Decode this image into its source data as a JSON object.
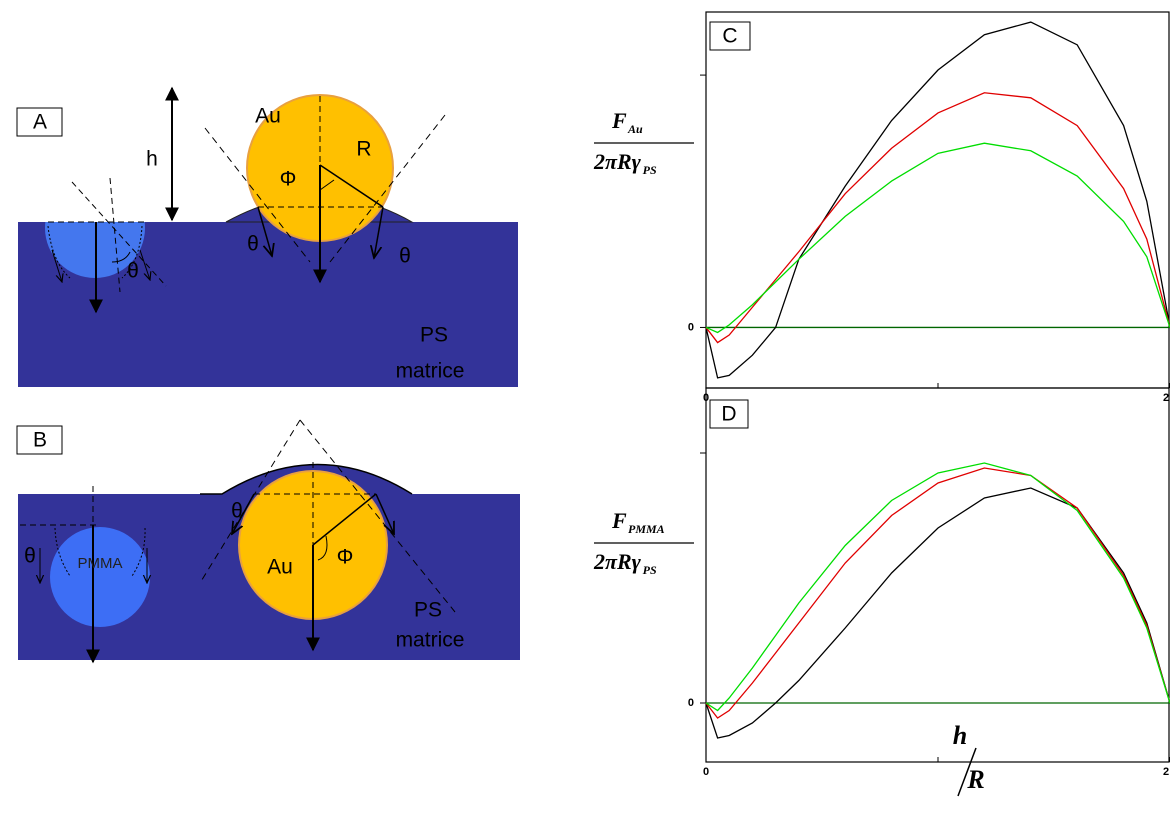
{
  "diagram": {
    "panels": [
      {
        "label": "A",
        "texts": [
          "h",
          "Au",
          "R",
          "Φ",
          "θ",
          "θ",
          "θ",
          "PS",
          "matrice"
        ]
      },
      {
        "label": "B",
        "texts": [
          "θ",
          "PMMA",
          "θ",
          "Au",
          "Φ",
          "PS",
          "matrice"
        ]
      }
    ]
  },
  "chart_data": [
    {
      "type": "line",
      "panel": "C",
      "y_label": {
        "numerator": "F",
        "numerator_sub": "Au",
        "denominator": "2πRγ",
        "denominator_sub": "PS"
      },
      "x": [
        0,
        0.05,
        0.1,
        0.2,
        0.3,
        0.4,
        0.6,
        0.8,
        1.0,
        1.2,
        1.4,
        1.6,
        1.8,
        1.9,
        2.0
      ],
      "series": [
        {
          "color": "#000000",
          "values": [
            0,
            -0.2,
            -0.19,
            -0.11,
            0.0,
            0.27,
            0.56,
            0.82,
            1.02,
            1.16,
            1.21,
            1.12,
            0.8,
            0.5,
            0
          ]
        },
        {
          "color": "#e00000",
          "values": [
            0,
            -0.06,
            -0.03,
            0.08,
            0.19,
            0.3,
            0.53,
            0.71,
            0.85,
            0.93,
            0.91,
            0.8,
            0.55,
            0.35,
            0
          ]
        },
        {
          "color": "#00dd00",
          "values": [
            0,
            -0.02,
            0.01,
            0.09,
            0.18,
            0.27,
            0.44,
            0.58,
            0.69,
            0.73,
            0.7,
            0.6,
            0.42,
            0.28,
            0
          ]
        }
      ],
      "xlim": [
        0,
        2
      ],
      "ylim": [
        -0.24,
        1.25
      ],
      "xticks": [
        0,
        2
      ],
      "yticks": [
        0
      ],
      "unlabeled_xticks": [
        1
      ],
      "unlabeled_yticks": [
        1
      ],
      "zero_line_color": "#006600"
    },
    {
      "type": "line",
      "panel": "D",
      "y_label": {
        "numerator": "F",
        "numerator_sub": "PMMA",
        "denominator": "2πRγ",
        "denominator_sub": "PS"
      },
      "x_label": {
        "numerator": "h",
        "denominator": "R"
      },
      "x": [
        0,
        0.05,
        0.1,
        0.2,
        0.3,
        0.4,
        0.6,
        0.8,
        1.0,
        1.2,
        1.4,
        1.6,
        1.8,
        1.9,
        2.0
      ],
      "series": [
        {
          "color": "#000000",
          "values": [
            0,
            -0.14,
            -0.13,
            -0.08,
            0.0,
            0.09,
            0.3,
            0.52,
            0.7,
            0.82,
            0.86,
            0.78,
            0.52,
            0.32,
            0
          ]
        },
        {
          "color": "#e00000",
          "values": [
            0,
            -0.06,
            -0.03,
            0.08,
            0.2,
            0.32,
            0.56,
            0.75,
            0.88,
            0.94,
            0.91,
            0.78,
            0.51,
            0.31,
            0
          ]
        },
        {
          "color": "#00dd00",
          "values": [
            0,
            -0.03,
            0.02,
            0.14,
            0.27,
            0.4,
            0.63,
            0.81,
            0.92,
            0.96,
            0.91,
            0.77,
            0.5,
            0.3,
            0
          ]
        }
      ],
      "xlim": [
        0,
        2
      ],
      "ylim": [
        -0.236,
        1.26
      ],
      "xticks": [
        0,
        2
      ],
      "yticks": [
        0
      ],
      "unlabeled_xticks": [
        1
      ],
      "unlabeled_yticks": [
        1
      ],
      "zero_line_color": "#006600"
    }
  ]
}
